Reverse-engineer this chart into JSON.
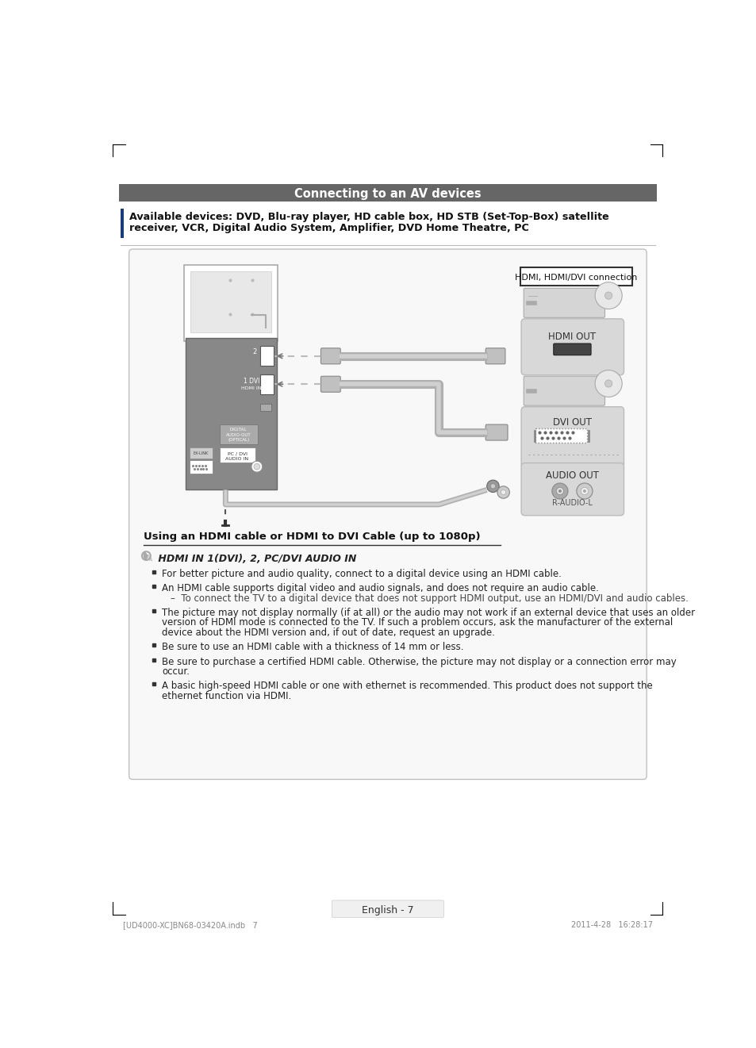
{
  "page_bg": "#ffffff",
  "header_bar_color": "#6b6b6b",
  "header_text": "Connecting to an AV devices",
  "header_text_color": "#ffffff",
  "available_text_line1": "Available devices: DVD, Blu-ray player, HD cable box, HD STB (Set-Top-Box) satellite",
  "available_text_line2": "receiver, VCR, Digital Audio System, Amplifier, DVD Home Theatre, PC",
  "hdmi_label": "HDMI, HDMI/DVI connection",
  "hdmi_out_label": "HDMI OUT",
  "dvi_out_label": "DVI OUT",
  "audio_out_label": "AUDIO OUT",
  "raudio_label": "R-AUDIO-L",
  "section_title": "Using an HDMI cable or HDMI to DVI Cable (up to 1080p)",
  "note_label": " HDMI IN 1(DVI), 2, PC/DVI AUDIO IN",
  "bullets": [
    "For better picture and audio quality, connect to a digital device using an HDMI cable.",
    "An HDMI cable supports digital video and audio signals, and does not require an audio cable.\n–  To connect the TV to a digital device that does not support HDMI output, use an HDMI/DVI and audio cables.",
    "The picture may not display normally (if at all) or the audio may not work if an external device that uses an older\nversion of HDMI mode is connected to the TV. If such a problem occurs, ask the manufacturer of the external\ndevice about the HDMI version and, if out of date, request an upgrade.",
    "Be sure to use an HDMI cable with a thickness of 14 mm or less.",
    "Be sure to purchase a certified HDMI cable. Otherwise, the picture may not display or a connection error may\noccur.",
    "A basic high-speed HDMI cable or one with ethernet is recommended. This product does not support the\nethernet function via HDMI."
  ],
  "footer_text": "English - 7",
  "bottom_left": "[UD4000-XC]BN68-03420A.indb   7",
  "bottom_right": "2011-4-28   16:28:17"
}
